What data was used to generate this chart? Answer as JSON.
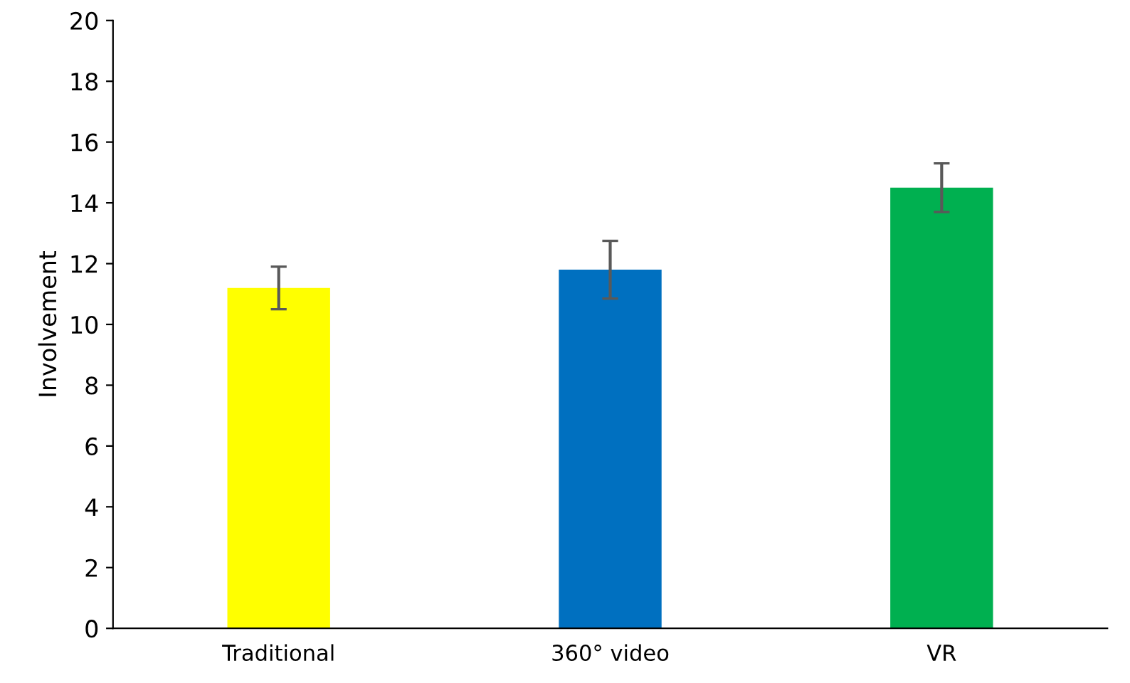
{
  "chart_data": {
    "type": "bar",
    "ylabel": "Involvement",
    "categories": [
      "Traditional",
      "360° video",
      "VR"
    ],
    "values": [
      11.2,
      11.8,
      14.5
    ],
    "colors": [
      "#ffff00",
      "#0070c0",
      "#00b050"
    ],
    "errors": [
      0.7,
      0.95,
      0.8
    ],
    "ylim": [
      0,
      20
    ],
    "yticks": [
      0,
      2,
      4,
      6,
      8,
      10,
      12,
      14,
      16,
      18,
      20
    ],
    "grid": false,
    "legend": false
  }
}
